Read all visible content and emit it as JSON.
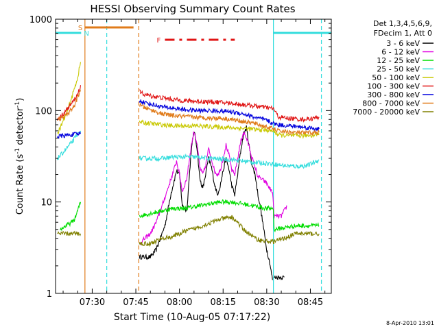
{
  "chart_data": {
    "type": "line",
    "title": "HESSI Observing Summary Count Rates",
    "xlabel": "Start Time (10-Aug-05 07:17:22)",
    "ylabel_main": "Count Rate (s",
    "ylabel_sup1": "-1",
    "ylabel_mid": " detector",
    "ylabel_sup2": "-1",
    "ylabel_end": ")",
    "yscale": "log",
    "ylim": [
      1,
      1000
    ],
    "x_unit": "minutes of day",
    "xlim": [
      437.4,
      532.2
    ],
    "x_ticks": [
      {
        "t": 450,
        "label": "07:30"
      },
      {
        "t": 465,
        "label": "07:45"
      },
      {
        "t": 480,
        "label": "08:00"
      },
      {
        "t": 495,
        "label": "08:15"
      },
      {
        "t": 510,
        "label": "08:30"
      },
      {
        "t": 525,
        "label": "08:45"
      }
    ],
    "y_ticks": [
      {
        "v": 1,
        "label": "1"
      },
      {
        "v": 10,
        "label": "10"
      },
      {
        "v": 100,
        "label": "100"
      },
      {
        "v": 1000,
        "label": "1000"
      }
    ],
    "legend_header": [
      "Det 1,3,4,5,6,9,",
      "FDecim 1, Att 0"
    ],
    "legend_position": "right",
    "timestamp": "8-Apr-2010 13:01",
    "markers": [
      {
        "label": "S",
        "color": "#e07b1a",
        "x_start": 447.5,
        "x_end": 464.2
      },
      {
        "label": "N",
        "color": "#33dddd",
        "x_start": 437.4,
        "x_end": 446.2
      },
      {
        "label": "F",
        "color": "#e01414",
        "x_start": 475.0,
        "x_end": 499.0
      }
    ],
    "vlines": [
      {
        "t": 447.5,
        "color": "#e07b1a",
        "style": "solid"
      },
      {
        "t": 455.0,
        "color": "#33dddd",
        "style": "dashed"
      },
      {
        "t": 466.0,
        "color": "#e07b1a",
        "style": "dashed"
      },
      {
        "t": 512.3,
        "color": "#33dddd",
        "style": "solid"
      },
      {
        "t": 528.8,
        "color": "#33dddd",
        "style": "dashed"
      }
    ],
    "series": [
      {
        "name": "3 - 6 keV",
        "color": "#000000",
        "segments": [
          [
            [
              466.2,
              2.5
            ],
            [
              470,
              2.5
            ],
            [
              472,
              3.0
            ],
            [
              475,
              5.5
            ],
            [
              477,
              12
            ],
            [
              479,
              22
            ],
            [
              480,
              20
            ],
            [
              481,
              9
            ],
            [
              482.5,
              8
            ],
            [
              484,
              35
            ],
            [
              485,
              60
            ],
            [
              486,
              40
            ],
            [
              487,
              18
            ],
            [
              488,
              14
            ],
            [
              489,
              20
            ],
            [
              490,
              30
            ],
            [
              491,
              24
            ],
            [
              492,
              16
            ],
            [
              493,
              12
            ],
            [
              494,
              15
            ],
            [
              495,
              22
            ],
            [
              496,
              30
            ],
            [
              497,
              23
            ],
            [
              498,
              15
            ],
            [
              499,
              12
            ],
            [
              500,
              20
            ],
            [
              501,
              35
            ],
            [
              502,
              55
            ],
            [
              503,
              65
            ],
            [
              504,
              40
            ],
            [
              505,
              25
            ],
            [
              506,
              20
            ],
            [
              507,
              12
            ],
            [
              508,
              8
            ],
            [
              509,
              5
            ],
            [
              510,
              3
            ],
            [
              511,
              2.2
            ],
            [
              512,
              1.4
            ]
          ],
          [
            [
              512.5,
              1.5
            ],
            [
              516,
              1.5
            ]
          ]
        ]
      },
      {
        "name": "6 - 12 keV",
        "color": "#e000e0",
        "segments": [
          [
            [
              466.2,
              3.5
            ],
            [
              470,
              4.5
            ],
            [
              472,
              6
            ],
            [
              474,
              9
            ],
            [
              476,
              14
            ],
            [
              478,
              22
            ],
            [
              479,
              28
            ],
            [
              480,
              20
            ],
            [
              481,
              13
            ],
            [
              482.5,
              18
            ],
            [
              484,
              40
            ],
            [
              485,
              60
            ],
            [
              486,
              44
            ],
            [
              487,
              24
            ],
            [
              488,
              20
            ],
            [
              489,
              25
            ],
            [
              490,
              38
            ],
            [
              491,
              30
            ],
            [
              492,
              22
            ],
            [
              493,
              20
            ],
            [
              494,
              22
            ],
            [
              495,
              30
            ],
            [
              496,
              42
            ],
            [
              497,
              33
            ],
            [
              498,
              22
            ],
            [
              499,
              20
            ],
            [
              500,
              30
            ],
            [
              501,
              45
            ],
            [
              502,
              58
            ],
            [
              503,
              50
            ],
            [
              504,
              40
            ],
            [
              505,
              30
            ],
            [
              506,
              24
            ],
            [
              507,
              19
            ],
            [
              508,
              18
            ],
            [
              509,
              17
            ],
            [
              510,
              16
            ],
            [
              511,
              14
            ],
            [
              512,
              13
            ],
            [
              512.5,
              7
            ],
            [
              515,
              7
            ],
            [
              516,
              8
            ],
            [
              517,
              9
            ]
          ]
        ]
      },
      {
        "name": "12 - 25 keV",
        "color": "#00dd00",
        "segments": [
          [
            [
              439,
              5
            ],
            [
              441,
              5.5
            ],
            [
              443,
              6
            ],
            [
              444,
              6.5
            ],
            [
              445,
              8
            ],
            [
              446,
              10
            ]
          ],
          [
            [
              466.2,
              7
            ],
            [
              470,
              7.5
            ],
            [
              474,
              8
            ],
            [
              478,
              8.5
            ],
            [
              482,
              8.5
            ],
            [
              486,
              9
            ],
            [
              490,
              9.5
            ],
            [
              494,
              10
            ],
            [
              498,
              10
            ],
            [
              502,
              9.5
            ],
            [
              506,
              9
            ],
            [
              510,
              8.5
            ],
            [
              512.3,
              8.5
            ],
            [
              512.5,
              5
            ],
            [
              520,
              5.5
            ],
            [
              528,
              5.5
            ]
          ]
        ]
      },
      {
        "name": "25 - 50 keV",
        "color": "#33dddd",
        "segments": [
          [
            [
              438,
              30
            ],
            [
              439,
              32
            ],
            [
              441,
              38
            ],
            [
              443,
              45
            ],
            [
              445,
              55
            ],
            [
              446,
              60
            ]
          ],
          [
            [
              466.2,
              30
            ],
            [
              470,
              30
            ],
            [
              474,
              30
            ],
            [
              478,
              31
            ],
            [
              482,
              31
            ],
            [
              486,
              31
            ],
            [
              490,
              30
            ],
            [
              494,
              29.5
            ],
            [
              498,
              29
            ],
            [
              502,
              28
            ],
            [
              506,
              27
            ],
            [
              510,
              26.5
            ],
            [
              512.3,
              26
            ],
            [
              516,
              25
            ],
            [
              520,
              24.5
            ],
            [
              524,
              25
            ],
            [
              528,
              29
            ]
          ]
        ]
      },
      {
        "name": "50 - 100 keV",
        "color": "#c8c800",
        "segments": [
          [
            [
              438,
              55
            ],
            [
              439,
              65
            ],
            [
              441,
              90
            ],
            [
              443,
              140
            ],
            [
              445,
              230
            ],
            [
              446,
              340
            ]
          ],
          [
            [
              466.2,
              75
            ],
            [
              470,
              72
            ],
            [
              474,
              70
            ],
            [
              478,
              68
            ],
            [
              482,
              68
            ],
            [
              486,
              68
            ],
            [
              490,
              67
            ],
            [
              494,
              66
            ],
            [
              498,
              65
            ],
            [
              502,
              64
            ],
            [
              506,
              62
            ],
            [
              510,
              61
            ],
            [
              512.3,
              60
            ],
            [
              514,
              54
            ],
            [
              518,
              53
            ],
            [
              522,
              53
            ],
            [
              526,
              54
            ],
            [
              528,
              56
            ]
          ]
        ]
      },
      {
        "name": "100 - 300 keV",
        "color": "#e01414",
        "segments": [
          [
            [
              438,
              80
            ],
            [
              439,
              85
            ],
            [
              441,
              100
            ],
            [
              443,
              120
            ],
            [
              445,
              150
            ],
            [
              446,
              190
            ]
          ],
          [
            [
              466.2,
              160
            ],
            [
              468,
              150
            ],
            [
              470,
              145
            ],
            [
              474,
              138
            ],
            [
              478,
              132
            ],
            [
              482,
              128
            ],
            [
              486,
              126
            ],
            [
              490,
              125
            ],
            [
              494,
              123
            ],
            [
              498,
              120
            ],
            [
              502,
              116
            ],
            [
              506,
              112
            ],
            [
              510,
              108
            ],
            [
              512.3,
              105
            ],
            [
              514,
              85
            ],
            [
              518,
              82
            ],
            [
              522,
              80
            ],
            [
              526,
              82
            ],
            [
              528,
              85
            ]
          ]
        ]
      },
      {
        "name": "300 - 800 keV",
        "color": "#0000dd",
        "segments": [
          [
            [
              438,
              52
            ],
            [
              440,
              53
            ],
            [
              442,
              54
            ],
            [
              444,
              55
            ],
            [
              446,
              56
            ]
          ],
          [
            [
              466.2,
              128
            ],
            [
              470,
              118
            ],
            [
              474,
              110
            ],
            [
              478,
              106
            ],
            [
              482,
              102
            ],
            [
              486,
              100
            ],
            [
              490,
              100
            ],
            [
              494,
              99
            ],
            [
              498,
              97
            ],
            [
              502,
              92
            ],
            [
              506,
              84
            ],
            [
              510,
              78
            ],
            [
              512.3,
              72
            ],
            [
              514,
              70
            ],
            [
              518,
              68
            ],
            [
              522,
              66
            ],
            [
              526,
              64
            ],
            [
              528,
              63
            ]
          ]
        ]
      },
      {
        "name": "800 - 7000 keV",
        "color": "#e07b1a",
        "segments": [
          [
            [
              438,
              78
            ],
            [
              440,
              85
            ],
            [
              442,
              95
            ],
            [
              444,
              115
            ],
            [
              446,
              170
            ]
          ],
          [
            [
              466.2,
              115
            ],
            [
              470,
              102
            ],
            [
              474,
              92
            ],
            [
              478,
              88
            ],
            [
              482,
              86
            ],
            [
              486,
              84
            ],
            [
              490,
              83
            ],
            [
              494,
              83
            ],
            [
              498,
              80
            ],
            [
              502,
              76
            ],
            [
              506,
              72
            ],
            [
              510,
              66
            ],
            [
              512.3,
              63
            ],
            [
              514,
              60
            ],
            [
              518,
              58
            ],
            [
              522,
              57
            ],
            [
              526,
              57
            ],
            [
              528,
              58
            ]
          ]
        ]
      },
      {
        "name": "7000 - 20000 keV",
        "color": "#808000",
        "segments": [
          [
            [
              438,
              4.5
            ],
            [
              446,
              4.5
            ]
          ],
          [
            [
              466.2,
              3.5
            ],
            [
              470,
              3.5
            ],
            [
              474,
              4
            ],
            [
              478,
              4.2
            ],
            [
              482,
              4.8
            ],
            [
              486,
              5.2
            ],
            [
              490,
              5.8
            ],
            [
              494,
              6.5
            ],
            [
              498,
              6.8
            ],
            [
              500,
              6
            ],
            [
              502,
              5
            ],
            [
              504,
              4.5
            ],
            [
              506,
              4
            ],
            [
              508,
              3.8
            ],
            [
              510,
              3.7
            ],
            [
              512.3,
              3.7
            ],
            [
              516,
              4
            ],
            [
              520,
              4.5
            ],
            [
              524,
              4.5
            ],
            [
              528,
              4.5
            ]
          ]
        ]
      }
    ]
  }
}
